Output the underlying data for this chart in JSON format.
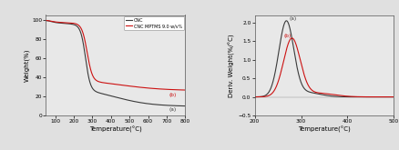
{
  "left": {
    "xlabel": "Temperature(°C)",
    "ylabel": "Weight(%)",
    "xlim": [
      50,
      800
    ],
    "ylim": [
      0,
      105
    ],
    "xticks": [
      100,
      200,
      300,
      400,
      500,
      600,
      700,
      800
    ],
    "yticks": [
      0,
      20,
      40,
      60,
      80,
      100
    ],
    "label_a": "(a)",
    "label_b": "(b)",
    "cnc_color": "#3a3a3a",
    "mptms_color": "#cc1111",
    "legend_labels": [
      "CNC",
      "CNC MPTMS 9.0 w/v%"
    ]
  },
  "right": {
    "xlabel": "Temperature(°C)",
    "ylabel": "Deriv. Weight(%/°C)",
    "xlim": [
      200,
      500
    ],
    "ylim": [
      -0.5,
      2.2
    ],
    "xticks": [
      200,
      300,
      400,
      500
    ],
    "yticks": [
      -0.5,
      0.0,
      0.5,
      1.0,
      1.5,
      2.0
    ],
    "label_a": "(a)",
    "label_b": "(b)",
    "cnc_color": "#3a3a3a",
    "mptms_color": "#cc1111"
  },
  "fig_bg": "#e8e8e8"
}
